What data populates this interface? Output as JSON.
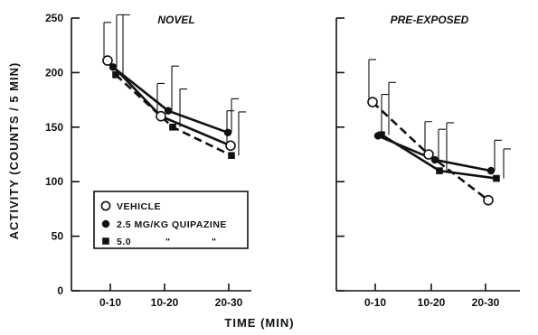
{
  "chart_data": {
    "type": "line",
    "ylabel": "ACTIVITY (COUNTS / 5 MIN)",
    "xlabel": "TIME (MIN)",
    "ylim": [
      0,
      250
    ],
    "yticks": [
      "0",
      "50",
      "100",
      "150",
      "200",
      "250"
    ],
    "categories": [
      "0-10",
      "10-20",
      "20-30"
    ],
    "legend": {
      "placement": "inside-left-panel-bottom-left",
      "entries": [
        {
          "marker": "open-circle",
          "label": "VEHICLE"
        },
        {
          "marker": "filled-circle",
          "label": "2.5 MG/KG QUIPAZINE"
        },
        {
          "marker": "filled-square",
          "label": "5.0",
          "ditto1": "\"",
          "ditto2": "\""
        }
      ]
    },
    "panels": [
      {
        "title": "NOVEL",
        "series": [
          {
            "marker": "open-circle",
            "style": "solid",
            "values": [
              211,
              160,
              133
            ],
            "err": [
              35,
              30,
              32
            ]
          },
          {
            "marker": "filled-circle",
            "style": "solid",
            "values": [
              205,
              165,
              145
            ],
            "err": [
              48,
              41,
              31
            ]
          },
          {
            "marker": "filled-square",
            "style": "dashed",
            "values": [
              198,
              150,
              124
            ],
            "err": [
              55,
              35,
              40
            ]
          }
        ]
      },
      {
        "title": "PRE-EXPOSED",
        "series": [
          {
            "marker": "open-circle",
            "style": "dashed",
            "values": [
              173,
              125,
              83
            ],
            "err": [
              39,
              30,
              0
            ]
          },
          {
            "marker": "filled-circle",
            "style": "solid",
            "values": [
              142,
              120,
              110
            ],
            "err": [
              38,
              28,
              28
            ]
          },
          {
            "marker": "filled-square",
            "style": "solid",
            "values": [
              143,
              110,
              103
            ],
            "err": [
              48,
              44,
              27
            ]
          }
        ]
      }
    ]
  }
}
